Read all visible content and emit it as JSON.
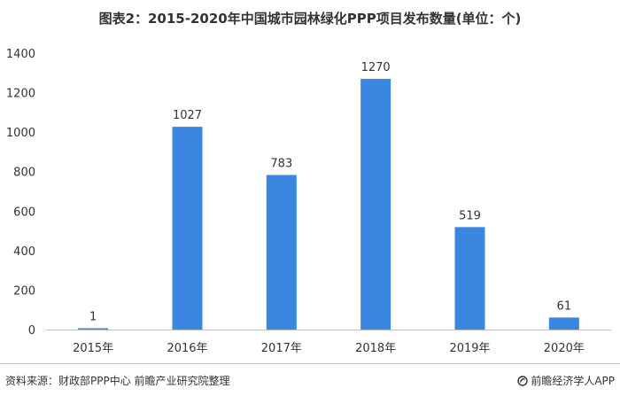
{
  "chart_data": {
    "type": "bar",
    "title": "图表2：2015-2020年中国城市园林绿化PPP项目发布数量(单位：个)",
    "categories": [
      "2015年",
      "2016年",
      "2017年",
      "2018年",
      "2019年",
      "2020年"
    ],
    "values": [
      1,
      1027,
      783,
      1270,
      519,
      61
    ],
    "data_labels": [
      "1",
      "1027",
      "783",
      "1270",
      "519",
      "61"
    ],
    "xlabel": "",
    "ylabel": "",
    "ylim": [
      0,
      1400
    ],
    "yticks": [
      0,
      200,
      400,
      600,
      800,
      1000,
      1200,
      1400
    ],
    "ytick_labels": [
      "0",
      "200",
      "400",
      "600",
      "800",
      "1000",
      "1200",
      "1400"
    ],
    "grid": false,
    "legend": "none",
    "bar_color": "#3b86e0"
  },
  "footer": {
    "source": "资料来源：财政部PPP中心 前瞻产业研究院整理",
    "brand": "前瞻经济学人APP",
    "brand_icon": "qianzhan-logo-icon"
  }
}
